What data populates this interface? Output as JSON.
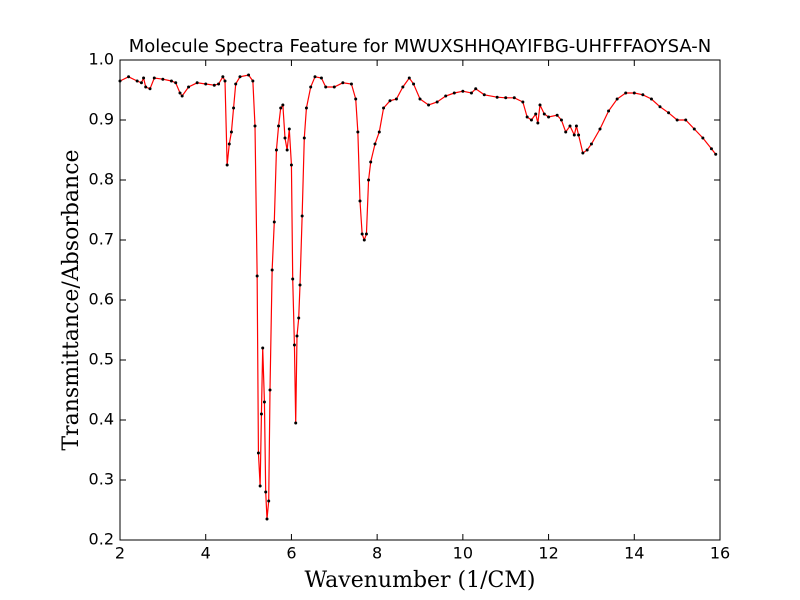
{
  "chart_data": {
    "type": "line",
    "title": "Molecule Spectra Feature for MWUXSHHQAYIFBG-UHFFFAOYSA-N",
    "xlabel": "Wavenumber (1/CM)",
    "ylabel": "Transmittance/Absorbance",
    "line_color": "#ff0000",
    "marker_color": "#000000",
    "label_color": "#8b0000",
    "xlim": [
      2,
      16
    ],
    "ylim": [
      0.2,
      1.0
    ],
    "xticks": [
      2,
      4,
      6,
      8,
      10,
      12,
      14,
      16
    ],
    "yticks": [
      0.2,
      0.3,
      0.4,
      0.5,
      0.6,
      0.7,
      0.8,
      0.9,
      {
        "value": 1,
        "label": "1.0"
      }
    ],
    "x": [
      2.0,
      2.2,
      2.4,
      2.5,
      2.55,
      2.6,
      2.7,
      2.8,
      3.0,
      3.2,
      3.3,
      3.4,
      3.45,
      3.6,
      3.8,
      4.0,
      4.2,
      4.3,
      4.4,
      4.45,
      4.5,
      4.55,
      4.6,
      4.65,
      4.7,
      4.8,
      5.0,
      5.1,
      5.15,
      5.2,
      5.23,
      5.27,
      5.3,
      5.33,
      5.37,
      5.4,
      5.43,
      5.47,
      5.5,
      5.55,
      5.6,
      5.65,
      5.7,
      5.75,
      5.8,
      5.85,
      5.9,
      5.95,
      6.0,
      6.03,
      6.07,
      6.1,
      6.13,
      6.17,
      6.2,
      6.25,
      6.3,
      6.35,
      6.45,
      6.55,
      6.7,
      6.8,
      7.0,
      7.2,
      7.4,
      7.5,
      7.55,
      7.6,
      7.65,
      7.7,
      7.75,
      7.8,
      7.85,
      7.95,
      8.05,
      8.15,
      8.3,
      8.45,
      8.6,
      8.75,
      8.85,
      9.0,
      9.2,
      9.4,
      9.6,
      9.8,
      10.0,
      10.2,
      10.3,
      10.5,
      10.8,
      11.0,
      11.2,
      11.4,
      11.5,
      11.6,
      11.7,
      11.75,
      11.8,
      11.9,
      12.0,
      12.2,
      12.3,
      12.4,
      12.5,
      12.6,
      12.65,
      12.7,
      12.8,
      12.9,
      13.0,
      13.2,
      13.4,
      13.6,
      13.8,
      14.0,
      14.2,
      14.4,
      14.6,
      14.8,
      15.0,
      15.2,
      15.4,
      15.6,
      15.8,
      15.9
    ],
    "values": [
      0.965,
      0.972,
      0.965,
      0.962,
      0.97,
      0.955,
      0.952,
      0.97,
      0.968,
      0.965,
      0.962,
      0.945,
      0.94,
      0.955,
      0.962,
      0.96,
      0.958,
      0.96,
      0.972,
      0.965,
      0.825,
      0.86,
      0.88,
      0.92,
      0.96,
      0.972,
      0.975,
      0.965,
      0.89,
      0.64,
      0.345,
      0.29,
      0.41,
      0.52,
      0.43,
      0.28,
      0.235,
      0.265,
      0.45,
      0.65,
      0.73,
      0.85,
      0.89,
      0.92,
      0.925,
      0.87,
      0.85,
      0.885,
      0.825,
      0.635,
      0.525,
      0.395,
      0.54,
      0.57,
      0.625,
      0.74,
      0.87,
      0.92,
      0.955,
      0.972,
      0.97,
      0.955,
      0.955,
      0.962,
      0.96,
      0.935,
      0.88,
      0.765,
      0.71,
      0.7,
      0.71,
      0.8,
      0.83,
      0.86,
      0.88,
      0.92,
      0.932,
      0.935,
      0.955,
      0.97,
      0.96,
      0.935,
      0.925,
      0.93,
      0.94,
      0.945,
      0.948,
      0.945,
      0.952,
      0.942,
      0.938,
      0.937,
      0.937,
      0.93,
      0.905,
      0.9,
      0.91,
      0.895,
      0.925,
      0.91,
      0.905,
      0.908,
      0.9,
      0.88,
      0.89,
      0.875,
      0.89,
      0.875,
      0.845,
      0.85,
      0.86,
      0.885,
      0.915,
      0.935,
      0.945,
      0.945,
      0.942,
      0.935,
      0.922,
      0.912,
      0.9,
      0.9,
      0.885,
      0.87,
      0.852,
      0.843
    ]
  }
}
